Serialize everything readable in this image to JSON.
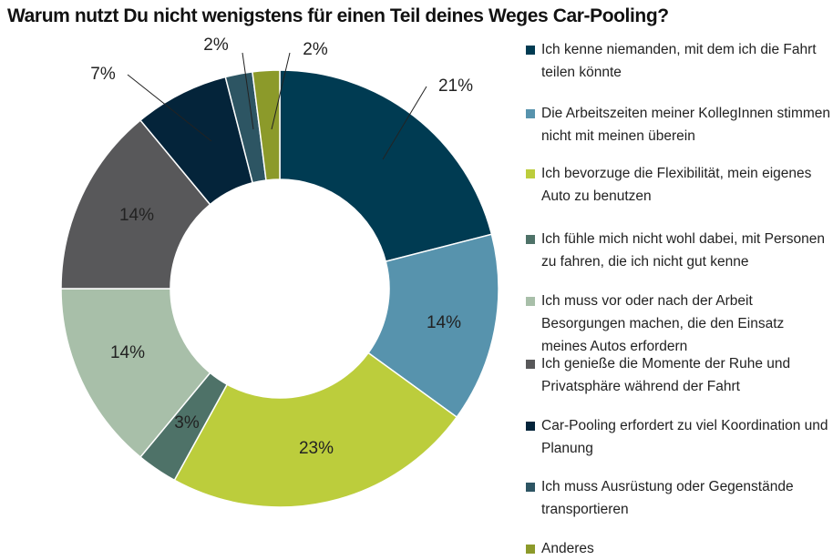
{
  "chart_data": {
    "type": "donut",
    "title": "Warum nutzt Du nicht wenigstens für einen Teil deines Weges Car-Pooling?",
    "categories": [
      "Ich kenne niemanden, mit dem ich die Fahrt teilen könnte",
      "Die Arbeitszeiten meiner KollegInnen stimmen nicht mit meinen überein",
      "Ich bevorzuge die Flexibilität, mein eigenes Auto zu benutzen",
      "Ich fühle mich nicht wohl dabei, mit Personen zu fahren, die ich nicht gut kenne",
      "Ich muss vor oder nach der Arbeit Besorgungen machen, die den Einsatz meines Autos erfordern",
      "Ich genieße die Momente der Ruhe und Privatsphäre während der Fahrt",
      "Car-Pooling erfordert zu viel Koordination und Planung",
      "Ich muss Ausrüstung oder Gegenstände transportieren",
      "Anderes"
    ],
    "values": [
      21,
      14,
      23,
      3,
      14,
      14,
      7,
      2,
      2
    ],
    "value_labels": [
      "21%",
      "14%",
      "23%",
      "3%",
      "14%",
      "14%",
      "7%",
      "2%",
      "2%"
    ],
    "colors": [
      "#003b52",
      "#5793ad",
      "#bccd3c",
      "#4e7268",
      "#a8bfa9",
      "#58585a",
      "#04243a",
      "#2d5563",
      "#8c9a2a"
    ],
    "legend": "right"
  }
}
